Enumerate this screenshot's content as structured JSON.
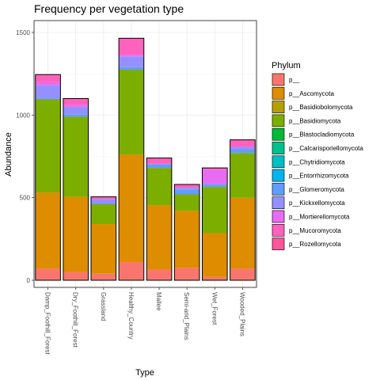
{
  "chart_data": {
    "type": "bar",
    "stacked": true,
    "title": "Frequency per vegetation type",
    "xlabel": "Type",
    "ylabel": "Abundance",
    "ylim": [
      0,
      1500
    ],
    "yticks": [
      0,
      500,
      1000,
      1500
    ],
    "grid": true,
    "legend_position": "right",
    "legend_title": "Phylum",
    "categories": [
      "Damp_Foothill_Forest",
      "Dry_Foothill_Forest",
      "Grassland",
      "Healthy_Country",
      "Mallee",
      "Semi-arid_Plains",
      "Wet_Forest",
      "Wooded_Plains"
    ],
    "series": [
      {
        "name": "p__",
        "color": "#F8766D",
        "values": [
          70,
          50,
          40,
          110,
          65,
          75,
          20,
          70
        ]
      },
      {
        "name": "p__Ascomycota",
        "color": "#DE8C00",
        "values": [
          460,
          455,
          300,
          650,
          390,
          345,
          265,
          430
        ]
      },
      {
        "name": "p__Basidiobolomycota",
        "color": "#B79F00",
        "values": [
          0,
          0,
          0,
          0,
          0,
          0,
          0,
          0
        ]
      },
      {
        "name": "p__Basidiomycota",
        "color": "#7CAE00",
        "values": [
          565,
          485,
          120,
          515,
          225,
          100,
          280,
          270
        ]
      },
      {
        "name": "p__Blastocladiomycota",
        "color": "#00BA38",
        "values": [
          0,
          0,
          0,
          0,
          0,
          0,
          0,
          0
        ]
      },
      {
        "name": "p__Calcarisporiellomycota",
        "color": "#00C08B",
        "values": [
          0,
          0,
          0,
          0,
          0,
          0,
          0,
          0
        ]
      },
      {
        "name": "p__Chytridiomycota",
        "color": "#00BFC4",
        "values": [
          0,
          0,
          0,
          0,
          0,
          0,
          0,
          0
        ]
      },
      {
        "name": "p__Entorrhizomycota",
        "color": "#00B4F0",
        "values": [
          0,
          0,
          0,
          0,
          0,
          0,
          0,
          0
        ]
      },
      {
        "name": "p__Glomeromycota",
        "color": "#619CFF",
        "values": [
          5,
          15,
          5,
          15,
          20,
          30,
          10,
          25
        ]
      },
      {
        "name": "p__Kickxellomycota",
        "color": "#9590FF",
        "values": [
          80,
          45,
          25,
          65,
          5,
          10,
          10,
          10
        ]
      },
      {
        "name": "p__Mortierellomycota",
        "color": "#E76BF3",
        "values": [
          20,
          10,
          0,
          10,
          0,
          0,
          85,
          5
        ]
      },
      {
        "name": "p__Mucoromycota",
        "color": "#FF62BC",
        "values": [
          40,
          40,
          15,
          100,
          35,
          20,
          10,
          40
        ]
      },
      {
        "name": "p__Rozellomycota",
        "color": "#FF5599",
        "values": [
          5,
          0,
          0,
          0,
          0,
          0,
          0,
          0
        ]
      }
    ]
  }
}
